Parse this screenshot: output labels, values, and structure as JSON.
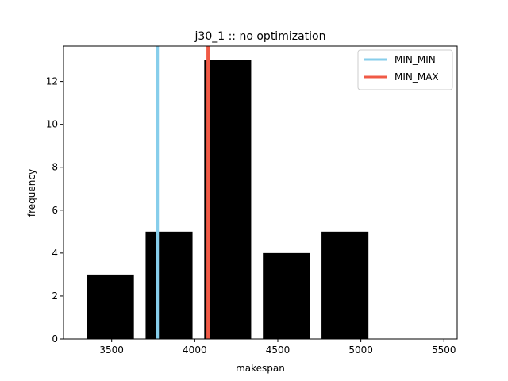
{
  "chart_data": {
    "type": "bar",
    "title": "j30_1 :: no optimization",
    "xlabel": "makespan",
    "ylabel": "frequency",
    "xlim": [
      3210,
      5580
    ],
    "ylim": [
      0,
      13.65
    ],
    "x_ticks": [
      3500,
      4000,
      4500,
      5000,
      5500
    ],
    "y_ticks": [
      0,
      2,
      4,
      6,
      8,
      10,
      12
    ],
    "bar_color": "#000000",
    "bins": [
      {
        "start": 3316,
        "end": 3669,
        "value": 3
      },
      {
        "start": 3669,
        "end": 4022,
        "value": 5
      },
      {
        "start": 4022,
        "end": 4375,
        "value": 13
      },
      {
        "start": 4375,
        "end": 4728,
        "value": 4
      },
      {
        "start": 4728,
        "end": 5081,
        "value": 5
      }
    ],
    "bins_display_offset": 0,
    "vlines": [
      {
        "name": "MIN_MIN",
        "x": 3775,
        "color": "#87CEEB"
      },
      {
        "name": "MIN_MAX",
        "x": 4080,
        "color": "#F05A46"
      }
    ],
    "legend_position": "top-right",
    "grid": false
  }
}
